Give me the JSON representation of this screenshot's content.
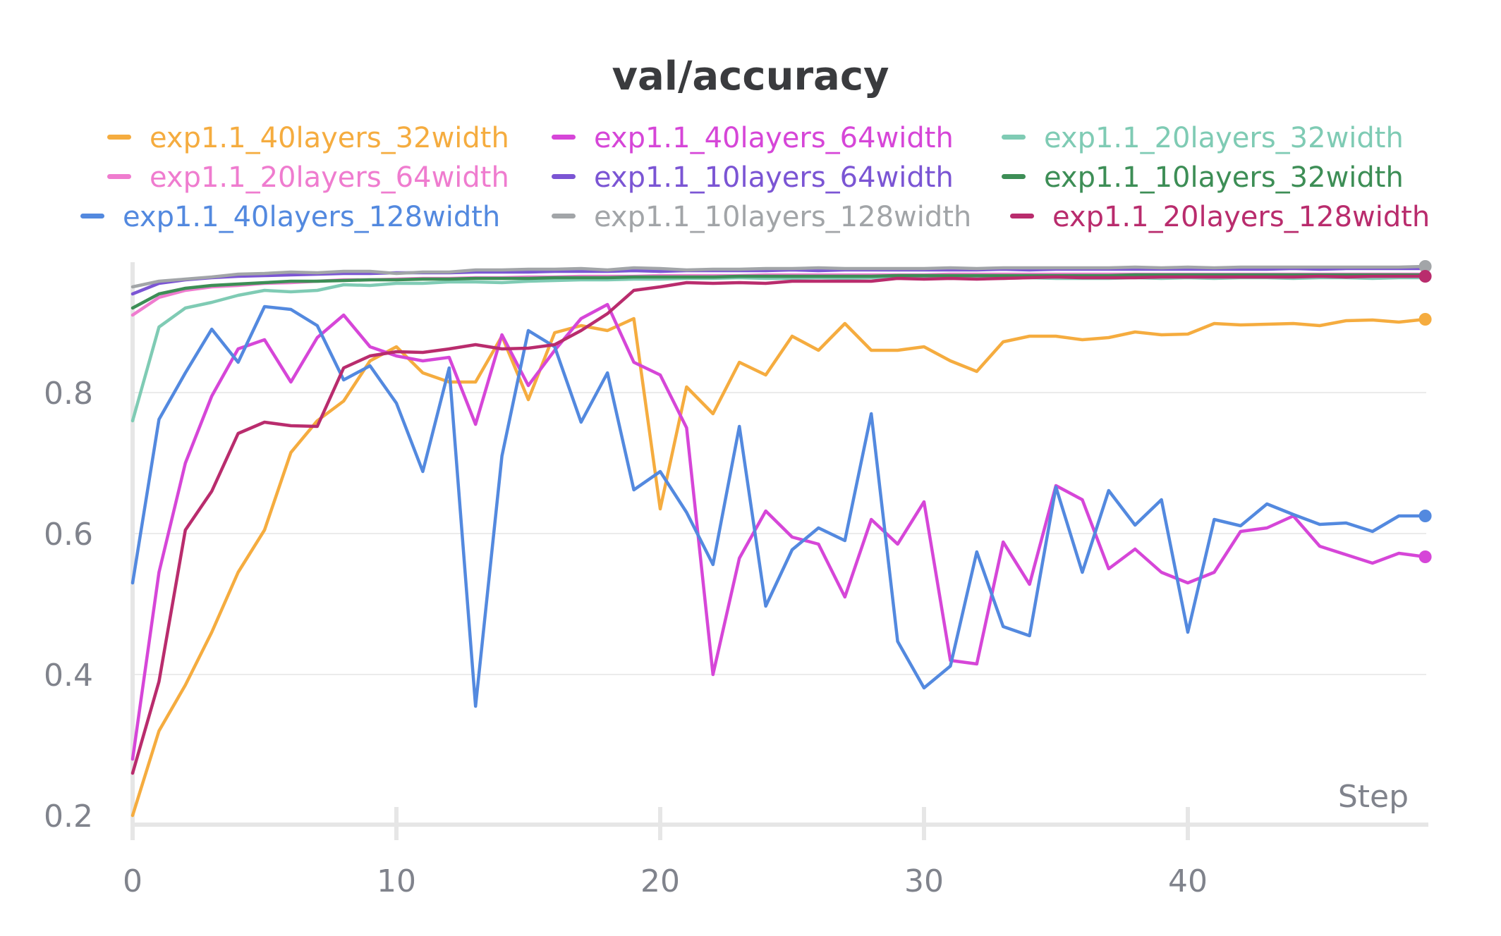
{
  "chart_data": {
    "type": "line",
    "title": "val/accuracy",
    "xlabel": "Step",
    "ylabel": "",
    "xlim": [
      0,
      49
    ],
    "ylim": [
      0.2,
      0.98
    ],
    "x_ticks": [
      0,
      10,
      20,
      30,
      40
    ],
    "y_ticks": [
      0.2,
      0.4,
      0.6,
      0.8
    ],
    "x_tick_labels": [
      "0",
      "10",
      "20",
      "30",
      "40"
    ],
    "y_tick_labels": [
      "0.2",
      "0.4",
      "0.6",
      "0.8"
    ],
    "grid": true,
    "legend_position": "top",
    "series": [
      {
        "name": "exp1.1_40layers_32width",
        "color": "#f5ac3f",
        "values": [
          0.2,
          0.32,
          0.385,
          0.46,
          0.545,
          0.605,
          0.715,
          0.76,
          0.788,
          0.845,
          0.865,
          0.828,
          0.815,
          0.815,
          0.88,
          0.79,
          0.885,
          0.895,
          0.888,
          0.905,
          0.635,
          0.808,
          0.77,
          0.843,
          0.825,
          0.88,
          0.86,
          0.898,
          0.86,
          0.86,
          0.865,
          0.845,
          0.83,
          0.872,
          0.88,
          0.88,
          0.875,
          0.878,
          0.886,
          0.882,
          0.883,
          0.898,
          0.896,
          0.897,
          0.898,
          0.895,
          0.902,
          0.903,
          0.9,
          0.904
        ],
        "end_marker": true
      },
      {
        "name": "exp1.1_40layers_64width",
        "color": "#d646d8",
        "values": [
          0.28,
          0.545,
          0.7,
          0.795,
          0.862,
          0.875,
          0.815,
          0.878,
          0.91,
          0.865,
          0.852,
          0.845,
          0.85,
          0.755,
          0.882,
          0.81,
          0.86,
          0.905,
          0.925,
          0.843,
          0.825,
          0.75,
          0.4,
          0.565,
          0.632,
          0.595,
          0.585,
          0.51,
          0.62,
          0.585,
          0.645,
          0.42,
          0.415,
          0.588,
          0.528,
          0.668,
          0.648,
          0.55,
          0.578,
          0.545,
          0.53,
          0.545,
          0.603,
          0.608,
          0.625,
          0.582,
          0.57,
          0.558,
          0.572,
          0.567
        ],
        "end_marker": true
      },
      {
        "name": "exp1.1_20layers_32width",
        "color": "#7fcbb4",
        "values": [
          0.76,
          0.893,
          0.92,
          0.928,
          0.938,
          0.945,
          0.943,
          0.945,
          0.953,
          0.952,
          0.955,
          0.955,
          0.957,
          0.957,
          0.956,
          0.958,
          0.959,
          0.96,
          0.96,
          0.961,
          0.961,
          0.962,
          0.962,
          0.963,
          0.962,
          0.962,
          0.963,
          0.962,
          0.963,
          0.963,
          0.963,
          0.962,
          0.963,
          0.962,
          0.963,
          0.962,
          0.962,
          0.962,
          0.963,
          0.962,
          0.963,
          0.962,
          0.963,
          0.963,
          0.962,
          0.963,
          0.963,
          0.962,
          0.963,
          0.963
        ]
      },
      {
        "name": "exp1.1_20layers_64width",
        "color": "#ef7ccf",
        "values": [
          0.91,
          0.935,
          0.945,
          0.95,
          0.952,
          0.955,
          0.956,
          0.958,
          0.96,
          0.96,
          0.961,
          0.962,
          0.962,
          0.963,
          0.963,
          0.964,
          0.964,
          0.965,
          0.965,
          0.965,
          0.966,
          0.966,
          0.966,
          0.966,
          0.967,
          0.967,
          0.967,
          0.967,
          0.967,
          0.967,
          0.967,
          0.968,
          0.968,
          0.968,
          0.968,
          0.968,
          0.968,
          0.968,
          0.968,
          0.968,
          0.968,
          0.968,
          0.968,
          0.968,
          0.968,
          0.968,
          0.968,
          0.968,
          0.968,
          0.968
        ]
      },
      {
        "name": "exp1.1_10layers_64width",
        "color": "#7b55d4",
        "values": [
          0.94,
          0.955,
          0.96,
          0.963,
          0.965,
          0.966,
          0.967,
          0.968,
          0.969,
          0.969,
          0.97,
          0.97,
          0.97,
          0.971,
          0.971,
          0.971,
          0.972,
          0.972,
          0.972,
          0.973,
          0.972,
          0.973,
          0.973,
          0.973,
          0.973,
          0.974,
          0.973,
          0.974,
          0.974,
          0.974,
          0.974,
          0.974,
          0.974,
          0.975,
          0.974,
          0.975,
          0.975,
          0.975,
          0.975,
          0.975,
          0.975,
          0.975,
          0.975,
          0.975,
          0.976,
          0.975,
          0.976,
          0.976,
          0.976,
          0.976
        ]
      },
      {
        "name": "exp1.1_10layers_32width",
        "color": "#3d8e56",
        "values": [
          0.92,
          0.94,
          0.948,
          0.952,
          0.954,
          0.956,
          0.958,
          0.958,
          0.959,
          0.96,
          0.96,
          0.961,
          0.961,
          0.962,
          0.962,
          0.962,
          0.963,
          0.963,
          0.963,
          0.964,
          0.964,
          0.964,
          0.964,
          0.965,
          0.965,
          0.965,
          0.965,
          0.965,
          0.965,
          0.966,
          0.966,
          0.966,
          0.966,
          0.966,
          0.966,
          0.966,
          0.966,
          0.966,
          0.967,
          0.967,
          0.967,
          0.967,
          0.967,
          0.967,
          0.967,
          0.967,
          0.967,
          0.967,
          0.967,
          0.967
        ]
      },
      {
        "name": "exp1.1_40layers_128width",
        "color": "#5389df",
        "values": [
          0.53,
          0.762,
          0.828,
          0.89,
          0.843,
          0.922,
          0.918,
          0.895,
          0.818,
          0.838,
          0.785,
          0.688,
          0.835,
          0.355,
          0.71,
          0.888,
          0.865,
          0.758,
          0.828,
          0.662,
          0.688,
          0.63,
          0.556,
          0.752,
          0.497,
          0.577,
          0.608,
          0.59,
          0.77,
          0.447,
          0.381,
          0.412,
          0.574,
          0.468,
          0.455,
          0.666,
          0.545,
          0.661,
          0.612,
          0.648,
          0.46,
          0.62,
          0.611,
          0.642,
          0.627,
          0.613,
          0.615,
          0.603,
          0.625,
          0.625
        ],
        "end_marker": true
      },
      {
        "name": "exp1.1_10layers_128width",
        "color": "#a2a5a8",
        "values": [
          0.95,
          0.958,
          0.961,
          0.964,
          0.968,
          0.969,
          0.971,
          0.97,
          0.972,
          0.972,
          0.969,
          0.971,
          0.971,
          0.974,
          0.974,
          0.975,
          0.975,
          0.976,
          0.974,
          0.977,
          0.976,
          0.974,
          0.975,
          0.975,
          0.976,
          0.976,
          0.977,
          0.976,
          0.976,
          0.976,
          0.976,
          0.977,
          0.976,
          0.977,
          0.977,
          0.977,
          0.977,
          0.977,
          0.978,
          0.977,
          0.978,
          0.977,
          0.978,
          0.978,
          0.978,
          0.978,
          0.978,
          0.978,
          0.978,
          0.979
        ],
        "end_marker": true
      },
      {
        "name": "exp1.1_20layers_128width",
        "color": "#b92c6d",
        "values": [
          0.26,
          0.39,
          0.605,
          0.66,
          0.742,
          0.758,
          0.753,
          0.752,
          0.835,
          0.852,
          0.858,
          0.857,
          0.862,
          0.868,
          0.862,
          0.863,
          0.868,
          0.888,
          0.912,
          0.945,
          0.95,
          0.956,
          0.955,
          0.956,
          0.955,
          0.958,
          0.958,
          0.958,
          0.958,
          0.962,
          0.961,
          0.962,
          0.961,
          0.962,
          0.963,
          0.964,
          0.963,
          0.963,
          0.963,
          0.964,
          0.964,
          0.964,
          0.964,
          0.964,
          0.964,
          0.965,
          0.964,
          0.965,
          0.965,
          0.965
        ],
        "end_marker": true
      }
    ]
  }
}
